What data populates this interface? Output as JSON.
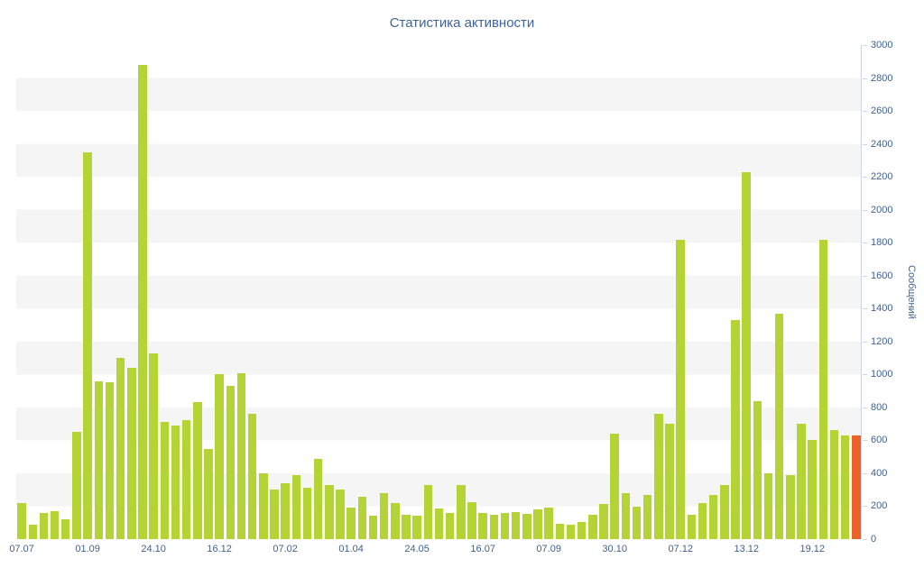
{
  "chart_data": {
    "type": "bar",
    "title": "Статистика активности",
    "ylabel": "Сообщений",
    "xlabel": "",
    "ylim": [
      0,
      3000
    ],
    "ytick_interval": 200,
    "legend": "none",
    "grid": "horizontal-striped-bands",
    "x_tick_labels": [
      "07.07",
      "01.09",
      "24.10",
      "16.12",
      "07.02",
      "01.04",
      "24.05",
      "16.07",
      "07.09",
      "30.10",
      "07.12",
      "13.12",
      "19.12"
    ],
    "x_tick_indices": [
      0,
      6,
      12,
      18,
      24,
      30,
      36,
      42,
      48,
      54,
      60,
      66,
      72
    ],
    "values": [
      220,
      90,
      160,
      170,
      120,
      650,
      2350,
      960,
      950,
      1100,
      1040,
      2880,
      1130,
      710,
      690,
      720,
      830,
      550,
      1000,
      930,
      1010,
      760,
      400,
      300,
      340,
      390,
      310,
      490,
      330,
      300,
      190,
      260,
      145,
      280,
      220,
      150,
      145,
      330,
      185,
      160,
      330,
      225,
      160,
      150,
      160,
      165,
      155,
      180,
      190,
      95,
      85,
      105,
      150,
      215,
      640,
      280,
      195,
      270,
      760,
      700,
      1820,
      150,
      220,
      270,
      330,
      1330,
      2230,
      840,
      400,
      1370,
      390,
      700,
      600,
      1820,
      660,
      630,
      630
    ],
    "highlight_index": 76,
    "colors": {
      "bar": "#b4d334",
      "highlight": "#e8622a",
      "text": "#41618e",
      "title_text": "#3f639c",
      "stripe": "#f5f5f5",
      "axis_line": "#ccd6e4"
    }
  }
}
